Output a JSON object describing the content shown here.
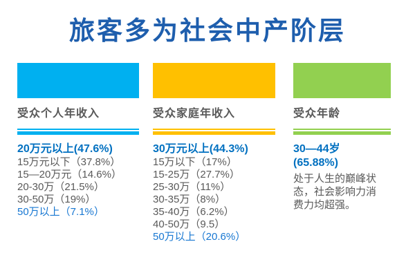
{
  "title": "旅客多为社会中产阶层",
  "theme": {
    "title_color": "#1E5EAD",
    "highlight_bold_color": "#0070C0",
    "highlight_light_color": "#1777D2",
    "body_text_color": "#595959",
    "background": "#FFFFFF"
  },
  "columns": [
    {
      "label": "受众个人年收入",
      "color": "#00B0F0",
      "highlight_top": "20万元以上(47.6%)",
      "items": [
        "15万元以下（37.8%）",
        "15—20万元（14.6%）",
        "20-30万（21.5%）",
        "30-50万（19%）"
      ],
      "highlight_bottom": "50万以上（7.1%）"
    },
    {
      "label": "受众家庭年收入",
      "color": "#FFC000",
      "highlight_top": "30万元以上(44.3%)",
      "items": [
        "15万以下（17%）",
        "15-25万（27.7%）",
        "25-30万（11%）",
        "30-35万（8%）",
        "35-40万（6.2%）",
        "40-50万（9.5）"
      ],
      "highlight_bottom": "50万以上（20.6%）"
    },
    {
      "label": "受众年龄",
      "color": "#92D050",
      "highlight_top": "30—44岁",
      "highlight_top2": "(65.88%)",
      "description": "处于人生的巅峰状态，社会影响力消费力均超强。"
    }
  ],
  "chart_data": [
    {
      "type": "table",
      "title": "受众个人年收入",
      "categories": [
        "20万元以上",
        "15万元以下",
        "15—20万元",
        "20-30万",
        "30-50万",
        "50万以上"
      ],
      "values": [
        47.6,
        37.8,
        14.6,
        21.5,
        19,
        7.1
      ],
      "unit": "%"
    },
    {
      "type": "table",
      "title": "受众家庭年收入",
      "categories": [
        "30万元以上",
        "15万以下",
        "15-25万",
        "25-30万",
        "30-35万",
        "35-40万",
        "40-50万",
        "50万以上"
      ],
      "values": [
        44.3,
        17,
        27.7,
        11,
        8,
        6.2,
        9.5,
        20.6
      ],
      "unit": "%"
    },
    {
      "type": "table",
      "title": "受众年龄",
      "categories": [
        "30—44岁"
      ],
      "values": [
        65.88
      ],
      "unit": "%"
    }
  ]
}
